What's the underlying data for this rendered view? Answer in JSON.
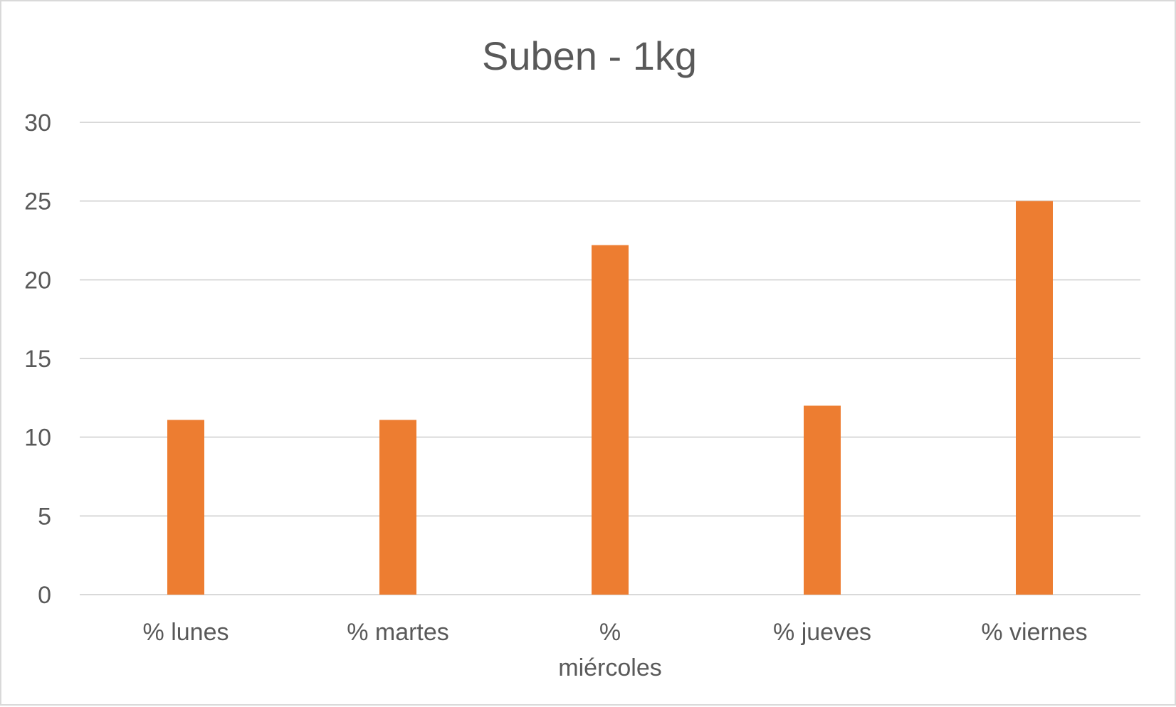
{
  "chart_data": {
    "type": "bar",
    "title": "Suben - 1kg",
    "xlabel": "",
    "ylabel": "",
    "categories": [
      [
        "% lunes"
      ],
      [
        "% martes"
      ],
      [
        "%",
        "miércoles"
      ],
      [
        "% jueves"
      ],
      [
        "% viernes"
      ]
    ],
    "values": [
      11.1,
      11.1,
      22.2,
      12.0,
      25.0
    ],
    "ylim": [
      0,
      30
    ],
    "yticks": [
      0,
      5,
      10,
      15,
      20,
      25,
      30
    ],
    "grid": true,
    "legend": "none",
    "bar_color": "#ED7D31"
  }
}
